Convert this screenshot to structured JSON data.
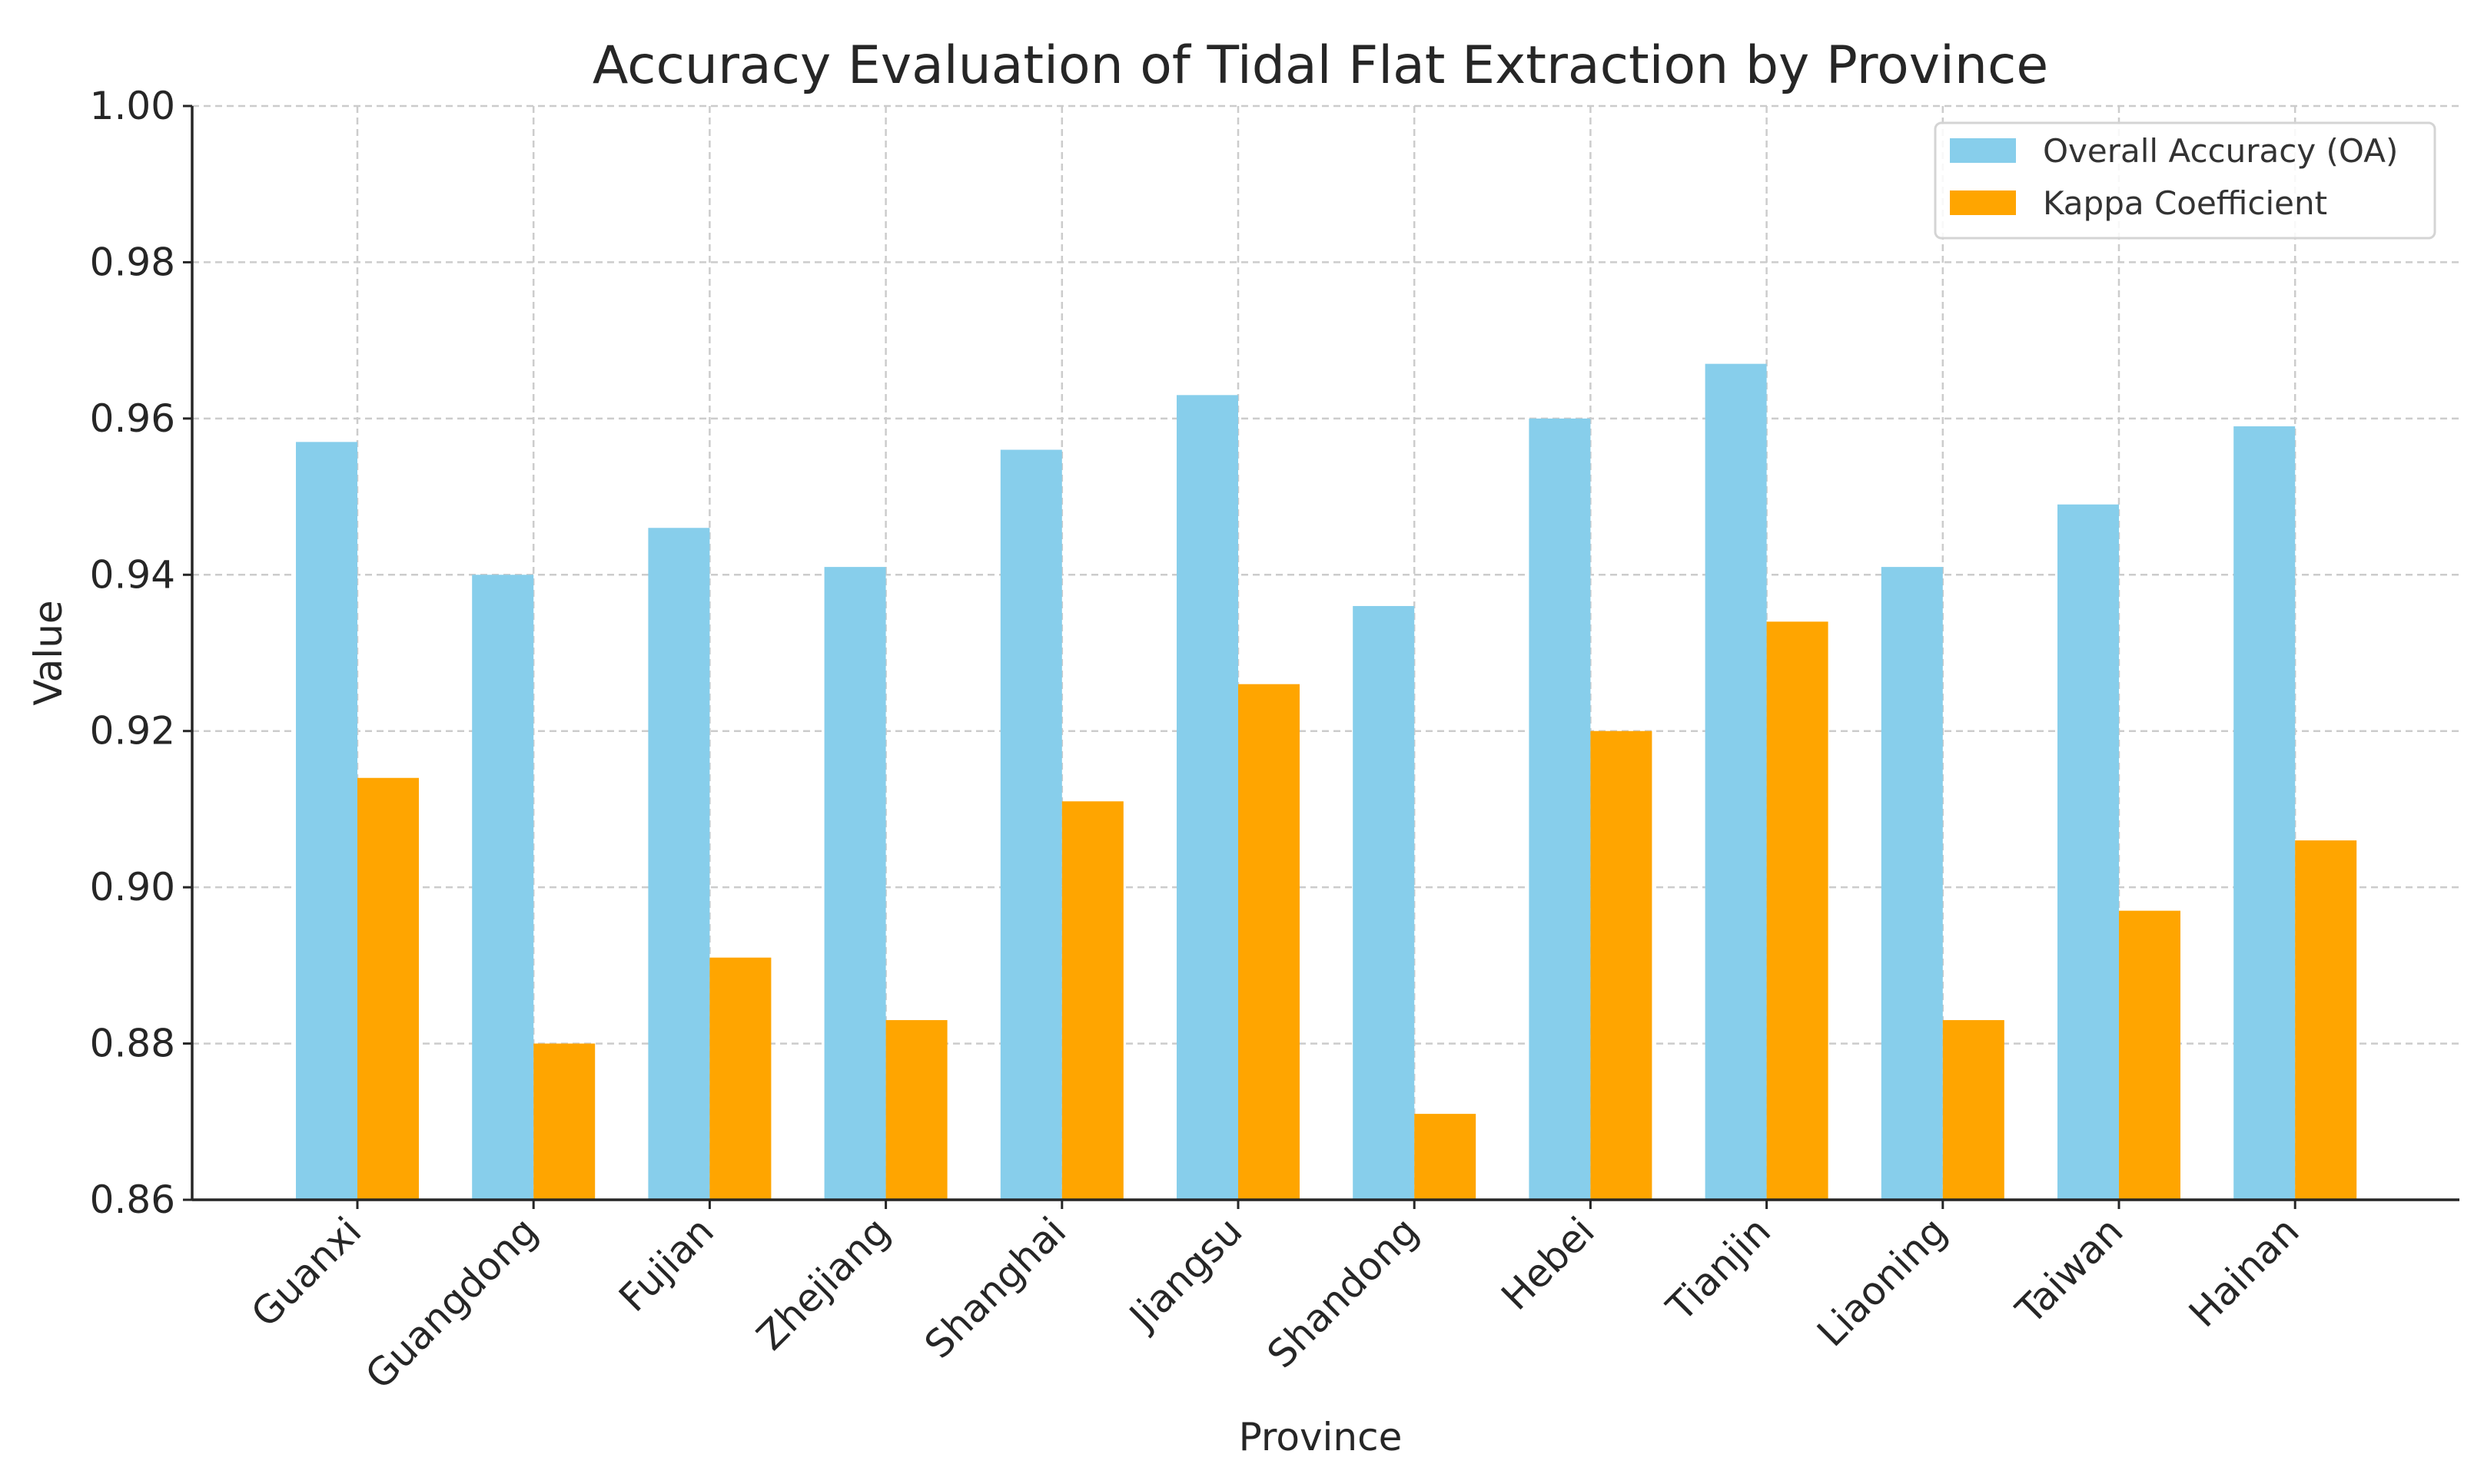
{
  "chart_data": {
    "type": "bar",
    "title": "Accuracy Evaluation of Tidal Flat Extraction by Province",
    "xlabel": "Province",
    "ylabel": "Value",
    "categories": [
      "Guanxi",
      "Guangdong",
      "Fujian",
      "Zhejiang",
      "Shanghai",
      "Jiangsu",
      "Shandong",
      "Hebei",
      "Tianjin",
      "Liaoning",
      "Taiwan",
      "Hainan"
    ],
    "series": [
      {
        "name": "Overall Accuracy (OA)",
        "color": "#87CEEB",
        "values": [
          0.957,
          0.94,
          0.946,
          0.941,
          0.956,
          0.963,
          0.936,
          0.96,
          0.967,
          0.941,
          0.949,
          0.959
        ]
      },
      {
        "name": "Kappa Coefficient",
        "color": "#FFA500",
        "values": [
          0.914,
          0.88,
          0.891,
          0.883,
          0.911,
          0.926,
          0.871,
          0.92,
          0.934,
          0.883,
          0.897,
          0.906
        ]
      }
    ],
    "ylim": [
      0.86,
      1.0
    ],
    "yticks": [
      "0.86",
      "0.88",
      "0.90",
      "0.92",
      "0.94",
      "0.96",
      "0.98",
      "1.00"
    ],
    "grid": true,
    "legend_position": "top-right"
  }
}
